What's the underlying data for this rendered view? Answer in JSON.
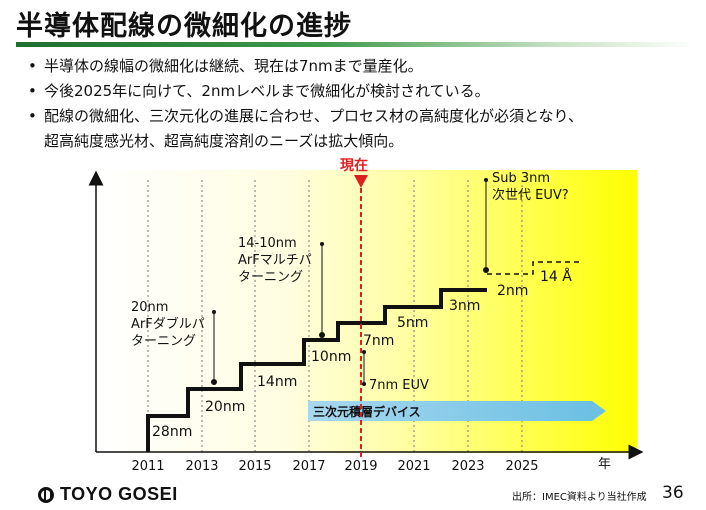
{
  "title": "半導体配線の微細化の進捗",
  "bullets": [
    "半導体の線幅の微細化は継続、現在は7nmまで量産化。",
    "今後2025年に向けて、2nmレベルまで微細化が検討されている。",
    "配線の微細化、三次元化の進展に合わせ、プロセス材の高純度化が必須となり、"
  ],
  "bullet_continuation": "超高純度感光材、超高純度溶剤のニーズは拡大傾向。",
  "bullet_marker": "•",
  "timeline": {
    "x_ticks": [
      "2011",
      "2013",
      "2015",
      "2017",
      "2019",
      "2021",
      "2023",
      "2025"
    ],
    "x_unit": "年",
    "now_label": "現在",
    "now_year": 2019,
    "step_labels": [
      "28nm",
      "20nm",
      "14nm",
      "10nm",
      "7nm",
      "5nm",
      "3nm",
      "2nm"
    ],
    "future_step_label": "14 Å",
    "annotations": {
      "a20_l1": "20nm",
      "a20_l2": "ArFダブルパ",
      "a20_l3": "ターニング",
      "a14_l1": "14-10nm",
      "a14_l2": "ArFマルチパ",
      "a14_l3": "ターニング",
      "euv": "7nm EUV",
      "sub_l1": "Sub 3nm",
      "sub_l2": "次世代 EUV?"
    },
    "arrow_label": "三次元積層デバイス",
    "colors": {
      "highlight": "#ffff00",
      "now_line": "#e02020",
      "arrow": "#7fc8e6"
    }
  },
  "footer": {
    "logo": "TOYO GOSEI",
    "source": "出所：IMEC資料より当社作成",
    "page": "36"
  }
}
